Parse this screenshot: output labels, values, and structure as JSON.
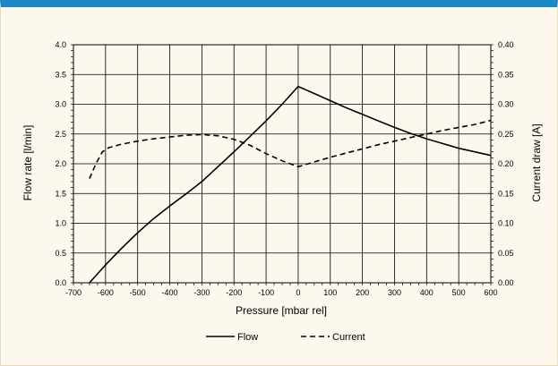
{
  "chart_data": {
    "type": "line",
    "xlabel": "Pressure [mbar rel]",
    "ylabel_left": "Flow rate [l/min]",
    "ylabel_right": "Current draw [A]",
    "xlim": [
      -700,
      600
    ],
    "ylim_left": [
      0,
      4.0
    ],
    "ylim_right": [
      0,
      0.4
    ],
    "grid": true,
    "legend_position": "bottom",
    "x_ticks": [
      "-700",
      "-600",
      "-500",
      "-400",
      "-300",
      "-200",
      "-100",
      "0",
      "100",
      "200",
      "300",
      "400",
      "500",
      "600"
    ],
    "y_left_ticks": [
      "0.0",
      "0.5",
      "1.0",
      "1.5",
      "2.0",
      "2.5",
      "3.0",
      "3.5",
      "4.0"
    ],
    "y_right_ticks": [
      "0.00",
      "0.05",
      "0.10",
      "0.15",
      "0.20",
      "0.25",
      "0.30",
      "0.35",
      "0.40"
    ],
    "series": [
      {
        "name": "Flow",
        "axis": "left",
        "style": "solid",
        "x": [
          -650,
          -625,
          -600,
          -550,
          -500,
          -450,
          -400,
          -350,
          -300,
          -250,
          -200,
          -150,
          -100,
          -50,
          0,
          50,
          100,
          150,
          200,
          250,
          300,
          350,
          400,
          450,
          500,
          550,
          600
        ],
        "y": [
          0.0,
          0.15,
          0.3,
          0.58,
          0.84,
          1.08,
          1.29,
          1.49,
          1.7,
          1.95,
          2.2,
          2.46,
          2.72,
          3.0,
          3.3,
          3.18,
          3.06,
          2.94,
          2.83,
          2.72,
          2.61,
          2.51,
          2.42,
          2.34,
          2.26,
          2.2,
          2.14
        ]
      },
      {
        "name": "Current",
        "axis": "right",
        "style": "dashed",
        "x": [
          -650,
          -630,
          -610,
          -590,
          -550,
          -500,
          -450,
          -400,
          -350,
          -300,
          -250,
          -200,
          -150,
          -100,
          -50,
          0,
          50,
          100,
          150,
          200,
          250,
          300,
          350,
          400,
          450,
          500,
          550,
          600
        ],
        "y": [
          0.175,
          0.2,
          0.22,
          0.227,
          0.233,
          0.238,
          0.242,
          0.245,
          0.248,
          0.249,
          0.247,
          0.241,
          0.231,
          0.217,
          0.205,
          0.195,
          0.203,
          0.211,
          0.218,
          0.225,
          0.232,
          0.238,
          0.244,
          0.25,
          0.256,
          0.261,
          0.266,
          0.273
        ]
      }
    ]
  },
  "colors": {
    "frame_top": "#1b86c8",
    "background": "#fdf8ee",
    "line": "#000000",
    "grid": "#000000"
  }
}
